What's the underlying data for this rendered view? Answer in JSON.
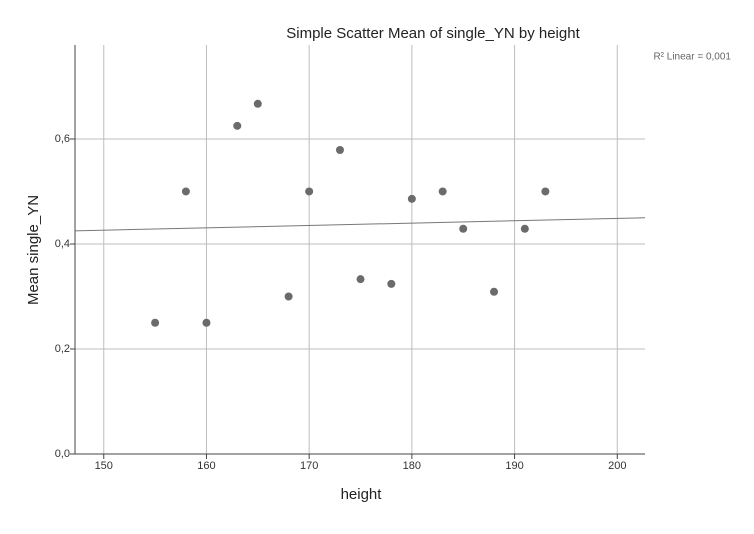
{
  "chart_data": {
    "type": "scatter",
    "title": "Simple Scatter Mean of single_YN by height",
    "x_label": "height",
    "y_label": "Mean single_YN",
    "annotation": "R² Linear = 0,001",
    "series": [
      {
        "color": "#6b6b6b",
        "x": [
          155,
          158,
          160,
          163,
          165,
          168,
          170,
          173,
          175,
          178,
          180,
          183,
          185,
          188,
          191,
          193
        ],
        "values": [
          0.25,
          0.5,
          0.25,
          0.625,
          0.667,
          0.3,
          0.5,
          0.579,
          0.333,
          0.324,
          0.486,
          0.5,
          0.429,
          0.309,
          0.429,
          0.5
        ]
      }
    ],
    "fit_line": {
      "x": [
        147.2,
        202.7
      ],
      "values": [
        0.425,
        0.45
      ],
      "color": "#777777"
    },
    "xlim": [
      147.2,
      202.7
    ],
    "ylim": [
      0,
      0.779
    ],
    "xticks": [
      150,
      160,
      170,
      180,
      190,
      200
    ],
    "yticks": [
      {
        "value": 0,
        "label": "0,0"
      },
      {
        "value": 0.2,
        "label": "0,2"
      },
      {
        "value": 0.4,
        "label": "0,4"
      },
      {
        "value": 0.6,
        "label": "0,6"
      }
    ],
    "grid": true
  }
}
